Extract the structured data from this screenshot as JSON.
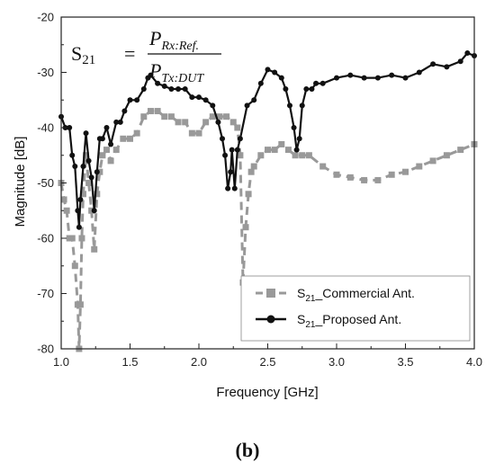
{
  "chart_data": {
    "type": "line",
    "caption": "(b)",
    "xlabel": "Frequency [GHz]",
    "ylabel": "Magnitude [dB]",
    "xlim": [
      1.0,
      4.0
    ],
    "ylim": [
      -80,
      -20
    ],
    "x_ticks": [
      "1.0",
      "1.5",
      "2.0",
      "2.5",
      "3.0",
      "3.5",
      "4.0"
    ],
    "y_ticks": [
      "-20",
      "-30",
      "-40",
      "-50",
      "-60",
      "-70",
      "-80"
    ],
    "equation": {
      "lhs_main": "S",
      "lhs_sub": "21",
      "equals": "=",
      "num_main": "P",
      "num_sub": "Rx:Ref.",
      "den_main": "P",
      "den_sub": "Tx:DUT"
    },
    "legend_position": "bottom-right",
    "series": [
      {
        "name_main": "S",
        "name_sub": "21",
        "name_rest": "_Commercial Ant.",
        "color": "#999999",
        "style": "dashed",
        "marker": "square",
        "x": [
          1.0,
          1.02,
          1.04,
          1.06,
          1.08,
          1.1,
          1.12,
          1.13,
          1.14,
          1.15,
          1.16,
          1.18,
          1.2,
          1.22,
          1.24,
          1.26,
          1.28,
          1.3,
          1.33,
          1.36,
          1.4,
          1.45,
          1.5,
          1.55,
          1.6,
          1.65,
          1.7,
          1.75,
          1.8,
          1.85,
          1.9,
          1.95,
          2.0,
          2.05,
          2.1,
          2.15,
          2.2,
          2.25,
          2.28,
          2.3,
          2.32,
          2.34,
          2.36,
          2.38,
          2.4,
          2.45,
          2.5,
          2.55,
          2.6,
          2.65,
          2.7,
          2.75,
          2.8,
          2.9,
          3.0,
          3.1,
          3.2,
          3.3,
          3.4,
          3.5,
          3.6,
          3.7,
          3.8,
          3.9,
          4.0
        ],
        "y": [
          -50,
          -53,
          -55,
          -60,
          -60,
          -65,
          -72,
          -80,
          -72,
          -60,
          -52,
          -45,
          -50,
          -55,
          -62,
          -52,
          -48,
          -45,
          -44,
          -46,
          -44,
          -42,
          -42,
          -41,
          -38,
          -37,
          -37,
          -38,
          -38,
          -39,
          -39,
          -41,
          -41,
          -39,
          -38,
          -38,
          -38,
          -39,
          -40,
          -45,
          -68,
          -58,
          -52,
          -48,
          -47,
          -45,
          -44,
          -44,
          -43,
          -44,
          -45,
          -45,
          -45,
          -47,
          -48.5,
          -49,
          -49.5,
          -49.5,
          -48.5,
          -48,
          -47,
          -46,
          -45,
          -44,
          -43
        ]
      },
      {
        "name_main": "S",
        "name_sub": "21",
        "name_rest": "_Proposed Ant.",
        "color": "#111111",
        "style": "solid",
        "marker": "circle",
        "x": [
          1.0,
          1.03,
          1.06,
          1.08,
          1.1,
          1.12,
          1.13,
          1.14,
          1.16,
          1.18,
          1.2,
          1.22,
          1.24,
          1.26,
          1.28,
          1.3,
          1.33,
          1.36,
          1.4,
          1.43,
          1.46,
          1.5,
          1.55,
          1.6,
          1.63,
          1.65,
          1.7,
          1.75,
          1.8,
          1.85,
          1.9,
          1.95,
          2.0,
          2.05,
          2.1,
          2.14,
          2.17,
          2.19,
          2.21,
          2.23,
          2.24,
          2.26,
          2.28,
          2.3,
          2.35,
          2.4,
          2.45,
          2.5,
          2.55,
          2.6,
          2.63,
          2.66,
          2.69,
          2.71,
          2.73,
          2.75,
          2.78,
          2.82,
          2.85,
          2.9,
          3.0,
          3.1,
          3.2,
          3.3,
          3.4,
          3.5,
          3.6,
          3.7,
          3.8,
          3.9,
          3.95,
          4.0
        ],
        "y": [
          -38,
          -40,
          -40,
          -45,
          -47,
          -55,
          -58,
          -53,
          -47,
          -41,
          -46,
          -49,
          -55,
          -48,
          -42,
          -42,
          -40,
          -43,
          -39,
          -39,
          -37,
          -35,
          -35,
          -33,
          -31,
          -30.5,
          -32,
          -32.5,
          -33,
          -33,
          -33,
          -34.5,
          -34.5,
          -35,
          -36,
          -39,
          -42,
          -45,
          -51,
          -48,
          -44,
          -51,
          -44,
          -42,
          -36,
          -35,
          -32,
          -29.5,
          -30,
          -31,
          -33,
          -36,
          -40,
          -44,
          -42,
          -36,
          -33,
          -33,
          -32,
          -32,
          -31,
          -30.5,
          -31,
          -31,
          -30.5,
          -31,
          -30,
          -28.5,
          -29,
          -28,
          -26.5,
          -27
        ]
      }
    ]
  }
}
